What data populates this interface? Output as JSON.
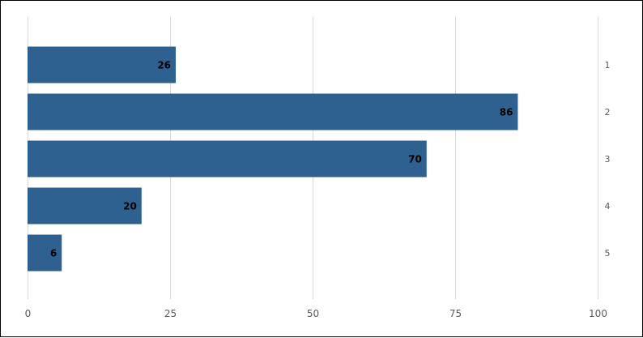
{
  "chart_data": {
    "type": "bar",
    "orientation": "horizontal",
    "categories": [
      "1",
      "2",
      "3",
      "4",
      "5"
    ],
    "values": [
      26,
      86,
      70,
      20,
      6
    ],
    "xlim": [
      0,
      100
    ],
    "x_ticks": [
      "0",
      "25",
      "50",
      "75",
      "100"
    ],
    "grid": true,
    "legend": "none",
    "category_axis_position": "right",
    "data_labels": true,
    "colors": {
      "bar": "#2e6190",
      "grid": "#d9d9d9",
      "frame": "#000000"
    }
  }
}
